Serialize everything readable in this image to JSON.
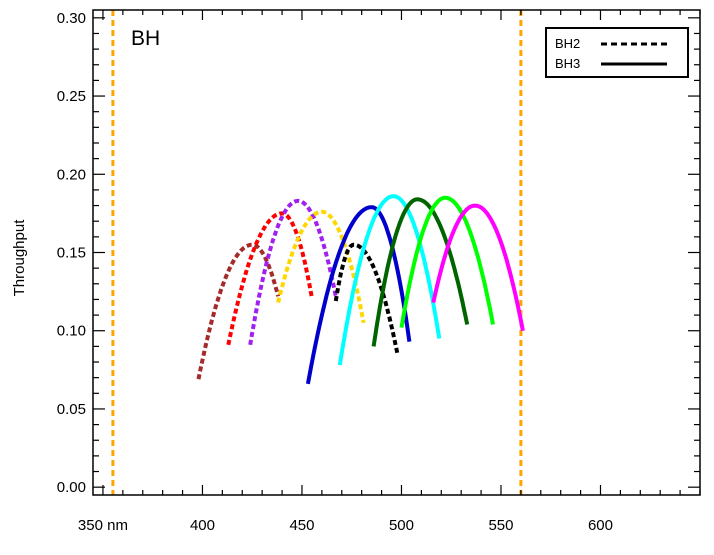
{
  "chart_data": {
    "type": "line",
    "panel_label": "BH",
    "xlabel": "",
    "ylabel": "Throughput",
    "xlim": [
      345,
      650
    ],
    "ylim": [
      -0.005,
      0.305
    ],
    "x_ticks": [
      350,
      400,
      450,
      500,
      550,
      600
    ],
    "x_tick_labels": [
      "350 nm",
      "400",
      "450",
      "500",
      "550",
      "600"
    ],
    "y_ticks": [
      0.0,
      0.05,
      0.1,
      0.15,
      0.2,
      0.25,
      0.3
    ],
    "y_tick_labels": [
      "0.00",
      "0.05",
      "0.10",
      "0.15",
      "0.20",
      "0.25",
      "0.30"
    ],
    "grid": false,
    "legend": {
      "position": "top-right",
      "entries": [
        {
          "label": "BH2",
          "style": "dotted"
        },
        {
          "label": "BH3",
          "style": "solid"
        }
      ]
    },
    "vertical_lines": [
      {
        "x": 355,
        "color": "#ffa500",
        "style": "dashed"
      },
      {
        "x": 560,
        "color": "#ffa500",
        "style": "dashed"
      }
    ],
    "series": [
      {
        "group": "BH2",
        "color": "#a52a2a",
        "style": "dotted",
        "start": 398,
        "end": 438,
        "peak_x": 425,
        "peak_y": 0.155,
        "start_y": 0.069,
        "end_y": 0.122
      },
      {
        "group": "BH2",
        "color": "#ff0000",
        "style": "dotted",
        "start": 413,
        "end": 455,
        "peak_x": 440,
        "peak_y": 0.175,
        "start_y": 0.091,
        "end_y": 0.121
      },
      {
        "group": "BH2",
        "color": "#a020f0",
        "style": "dotted",
        "start": 424,
        "end": 467,
        "peak_x": 448,
        "peak_y": 0.183,
        "start_y": 0.091,
        "end_y": 0.122
      },
      {
        "group": "BH2",
        "color": "#ffd700",
        "style": "dotted",
        "start": 438,
        "end": 481,
        "peak_x": 460,
        "peak_y": 0.176,
        "start_y": 0.118,
        "end_y": 0.105
      },
      {
        "group": "BH2",
        "color": "#000000",
        "style": "dotted",
        "start": 467,
        "end": 498,
        "peak_x": 476,
        "peak_y": 0.155,
        "start_y": 0.119,
        "end_y": 0.085
      },
      {
        "group": "BH3",
        "color": "#0000cd",
        "style": "solid",
        "start": 453,
        "end": 504,
        "peak_x": 485,
        "peak_y": 0.179,
        "start_y": 0.066,
        "end_y": 0.093
      },
      {
        "group": "BH3",
        "color": "#00ffff",
        "style": "solid",
        "start": 469,
        "end": 519,
        "peak_x": 496,
        "peak_y": 0.186,
        "start_y": 0.078,
        "end_y": 0.095
      },
      {
        "group": "BH3",
        "color": "#006400",
        "style": "solid",
        "start": 486,
        "end": 533,
        "peak_x": 508,
        "peak_y": 0.184,
        "start_y": 0.09,
        "end_y": 0.104
      },
      {
        "group": "BH3",
        "color": "#00ff00",
        "style": "solid",
        "start": 500,
        "end": 546,
        "peak_x": 522,
        "peak_y": 0.185,
        "start_y": 0.102,
        "end_y": 0.104
      },
      {
        "group": "BH3",
        "color": "#ff00ff",
        "style": "solid",
        "start": 516,
        "end": 561,
        "peak_x": 537,
        "peak_y": 0.18,
        "start_y": 0.118,
        "end_y": 0.1
      }
    ]
  }
}
